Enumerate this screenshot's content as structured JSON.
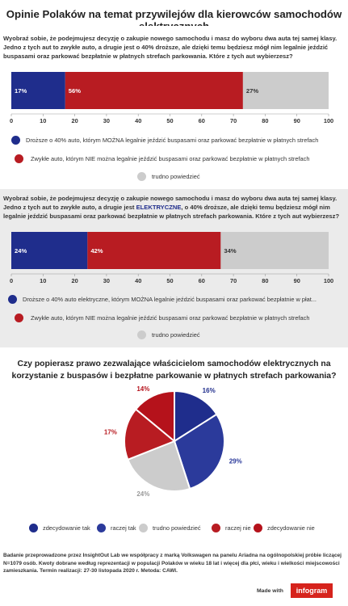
{
  "page": {
    "title": "Opinie Polaków na temat przywilejów dla kierowców samochodów elektrycznych"
  },
  "colors": {
    "blue": "#1f2d8c",
    "mid_blue": "#2b3a9b",
    "red": "#b81c22",
    "light_red": "#b5121b",
    "gray": "#cccccc"
  },
  "sections": [
    {
      "question": "Wyobraź sobie, że podejmujesz decyzję o zakupie nowego samochodu i masz do wyboru dwa auta tej samej klasy. Jedno z tych aut to zwykłe auto, a drugie jest o 40% droższe, ale dzięki temu będziesz mógł nim legalnie jeździć buspasami oraz parkować bezpłatnie w płatnych strefach parkowania. Które z tych aut wybierzesz?",
      "legend": [
        "Droższe o 40% auto, którym MOŻNA legalnie jeździć buspasami oraz parkować bezpłatnie w płatnych strefach",
        "Zwykłe auto, którym NIE można legalnie jeździć buspasami oraz parkować bezpłatnie w płatnych strefach",
        "trudno powiedzieć"
      ]
    },
    {
      "question_pre": "Wyobraź sobie, że podejmujesz decyzję o zakupie nowego samochodu i masz do wyboru dwa auta tej samej klasy. Jedno z tych aut to zwykłe auto, a drugie jest ",
      "question_hl": "ELEKTRYCZNE",
      "question_post": ", o 40% droższe, ale dzięki temu będziesz mógł nim legalnie jeździć buspasami oraz parkować bezpłatnie w płatnych strefach parkowania. Które z tych aut wybierzesz?",
      "legend": [
        "Droższe o 40% auto elektryczne, którym MOŻNA legalnie jeździć buspasami oraz parkować bezpłatnie w płat...",
        "Zwykłe auto, którym NIE można legalnie jeździć buspasami oraz parkować bezpłatnie w płatnych strefach",
        "trudno powiedzieć"
      ]
    }
  ],
  "chart_data": [
    {
      "type": "bar",
      "orientation": "horizontal-stacked",
      "categories": [
        ""
      ],
      "series": [
        {
          "name": "Droższe o 40% auto, którym MOŻNA legalnie jeździć buspasami oraz parkować bezpłatnie w płatnych strefach",
          "values": [
            17
          ],
          "label": "17%",
          "color": "#1f2d8c"
        },
        {
          "name": "Zwykłe auto, którym NIE można legalnie jeździć buspasami oraz parkować bezpłatnie w płatnych strefach",
          "values": [
            56
          ],
          "label": "56%",
          "color": "#b81c22"
        },
        {
          "name": "trudno powiedzieć",
          "values": [
            27
          ],
          "label": "27%",
          "color": "#cccccc"
        }
      ],
      "xlim": [
        0,
        100
      ],
      "xticks": [
        "0",
        "10",
        "20",
        "30",
        "40",
        "50",
        "60",
        "70",
        "80",
        "90",
        "100"
      ],
      "legend_position": "bottom"
    },
    {
      "type": "bar",
      "orientation": "horizontal-stacked",
      "categories": [
        ""
      ],
      "series": [
        {
          "name": "Droższe o 40% auto elektryczne, którym MOŻNA legalnie jeździć buspasami oraz parkować bezpłatnie w płat...",
          "values": [
            24
          ],
          "label": "24%",
          "color": "#1f2d8c"
        },
        {
          "name": "Zwykłe auto, którym NIE można legalnie jeździć buspasami oraz parkować bezpłatnie w płatnych strefach",
          "values": [
            42
          ],
          "label": "42%",
          "color": "#b81c22"
        },
        {
          "name": "trudno powiedzieć",
          "values": [
            34
          ],
          "label": "34%",
          "color": "#cccccc"
        }
      ],
      "xlim": [
        0,
        100
      ],
      "xticks": [
        "0",
        "10",
        "20",
        "30",
        "40",
        "50",
        "60",
        "70",
        "80",
        "90",
        "100"
      ],
      "legend_position": "bottom"
    },
    {
      "type": "pie",
      "title": "Czy popierasz prawo zezwalające właścicielom samochodów elektrycznych na korzystanie z buspasów i bezpłatne parkowanie w płatnych strefach parkowania?",
      "slices": [
        {
          "name": "zdecydowanie tak",
          "value": 16,
          "label": "16%",
          "color": "#1f2d8c"
        },
        {
          "name": "raczej tak",
          "value": 29,
          "label": "29%",
          "color": "#2b3a9b"
        },
        {
          "name": "trudno powiedzieć",
          "value": 24,
          "label": "24%",
          "color": "#cccccc"
        },
        {
          "name": "raczej nie",
          "value": 17,
          "label": "17%",
          "color": "#b81c22"
        },
        {
          "name": "zdecydowanie nie",
          "value": 14,
          "label": "14%",
          "color": "#b5121b"
        }
      ],
      "legend_position": "bottom"
    }
  ],
  "footer": {
    "note": "Badanie przeprowadzone przez InsightOut Lab we współpracy z marką Volkswagen na panelu Ariadna na ogólnopolskiej próbie liczącej N=1079 osób. Kwoty dobrane według reprezentacji w populacji Polaków w wieku 18 lat i więcej dla płci, wieku i wielkości miejscowości zamieszkania. Termin realizacji: 27-30 listopada 2020 r. Metoda: CAWI.",
    "made_with": "Made with",
    "logo_text": "infogram"
  }
}
